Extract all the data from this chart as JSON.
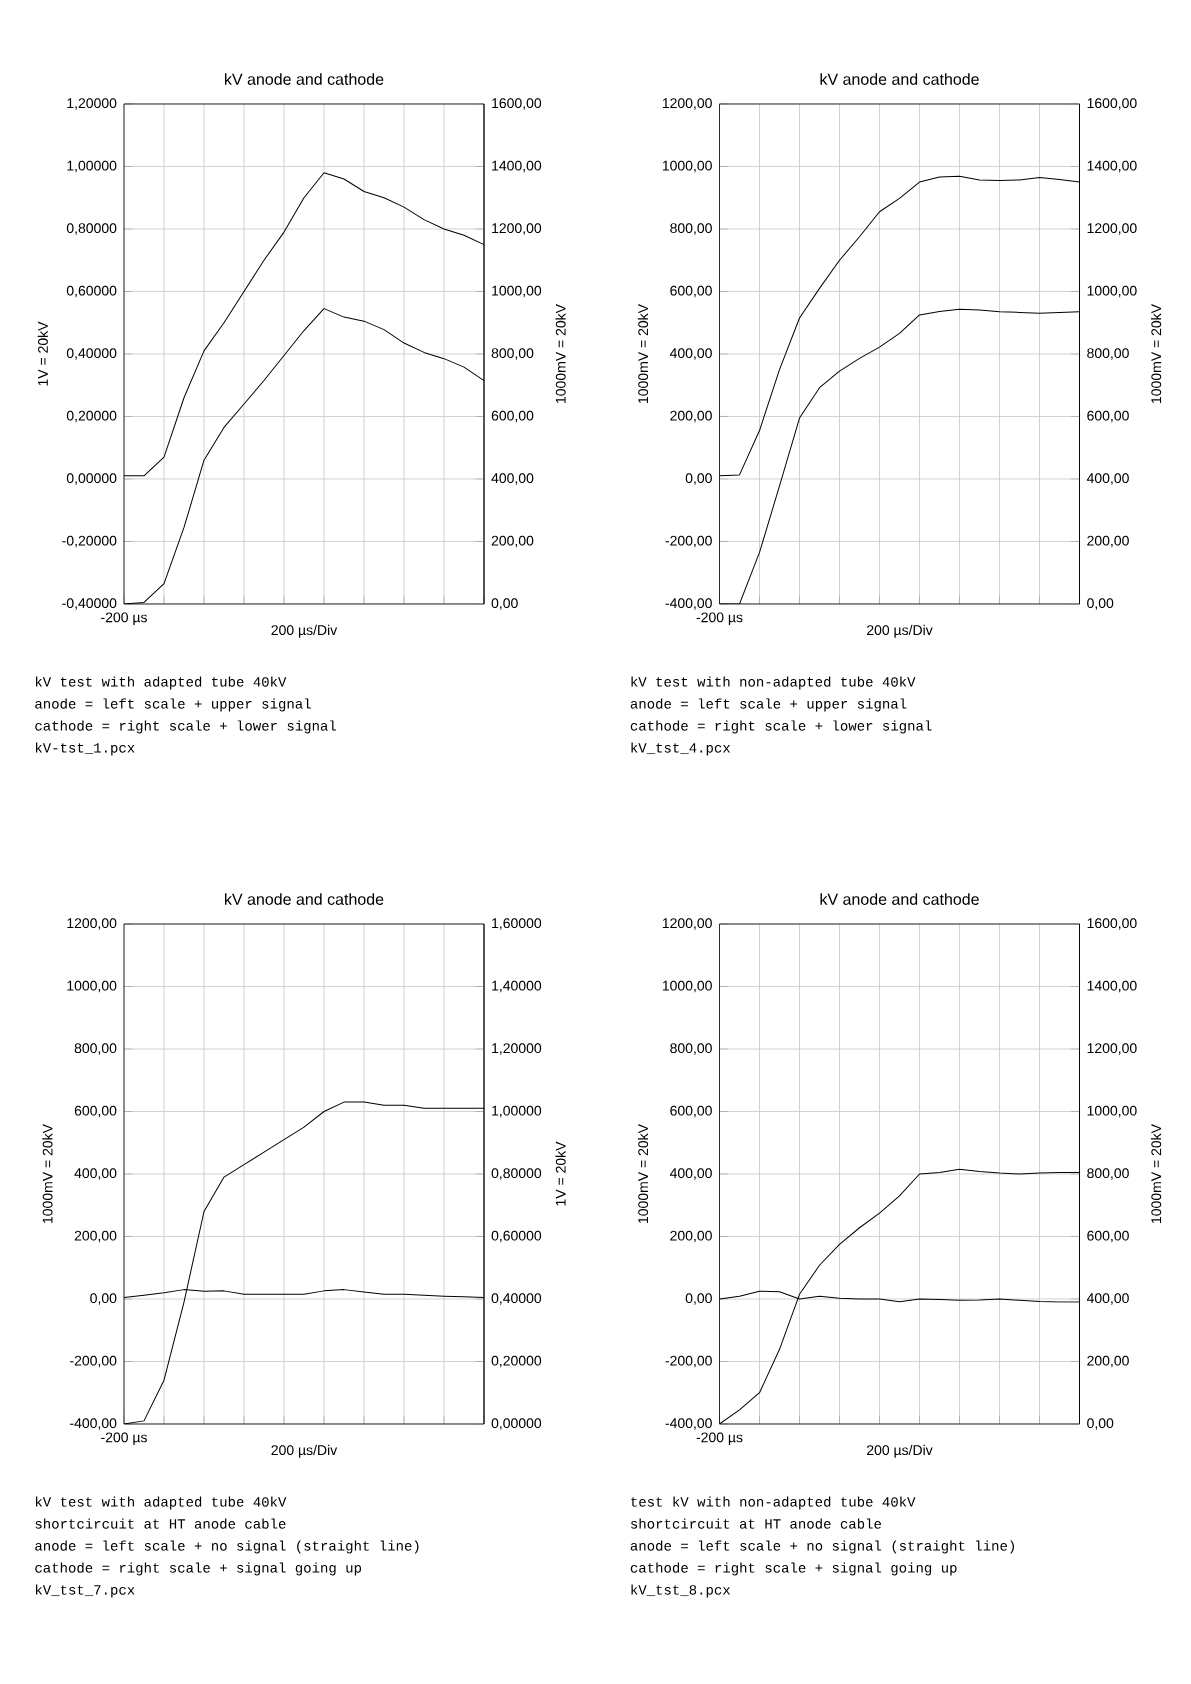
{
  "chart_data": [
    {
      "type": "line",
      "title": "kV anode and cathode",
      "xlabel": "200 µs/Div",
      "ylabel": "1V = 20kV",
      "y2label": "1000mV = 20kV",
      "grid": true,
      "categories": [
        null,
        null,
        null,
        null,
        null,
        null,
        null,
        null,
        null,
        null,
        null,
        null,
        null,
        null,
        null,
        null,
        null,
        null,
        null
      ],
      "ylim": [
        -0.4,
        1.2
      ],
      "yticks": [
        {
          "value": -0.4,
          "label": "-0,40000"
        },
        {
          "value": -0.2,
          "label": "-0,20000"
        },
        {
          "value": 0,
          "label": "0,00000"
        },
        {
          "value": 0.2,
          "label": "0,20000"
        },
        {
          "value": 0.4,
          "label": "0,40000"
        },
        {
          "value": 0.6,
          "label": "0,60000"
        },
        {
          "value": 0.8,
          "label": "0,80000"
        },
        {
          "value": 1.0,
          "label": "1,00000"
        },
        {
          "value": 1.2,
          "label": "1,20000"
        }
      ],
      "y2lim": [
        0,
        1600
      ],
      "y2ticks": [
        {
          "value": 0,
          "label": "0,00"
        },
        {
          "value": 200,
          "label": "200,00"
        },
        {
          "value": 400,
          "label": "400,00"
        },
        {
          "value": 600,
          "label": "600,00"
        },
        {
          "value": 800,
          "label": "800,00"
        },
        {
          "value": 1000,
          "label": "1000,00"
        },
        {
          "value": 1200,
          "label": "1200,00"
        },
        {
          "value": 1400,
          "label": "1400,00"
        },
        {
          "value": 1600,
          "label": "1600,00"
        }
      ],
      "series": [
        {
          "color": "#000000",
          "values": [
            0.01,
            0.01,
            0.07,
            0.26,
            0.41,
            0.5,
            0.6,
            0.7,
            0.79,
            0.9,
            0.98,
            0.96,
            0.92,
            0.9,
            0.87,
            0.83,
            0.8,
            0.78,
            0.75
          ]
        },
        {
          "color": "#000000",
          "axis": "y2",
          "values": [
            0,
            5,
            65,
            245,
            460,
            565,
            640,
            715,
            795,
            875,
            945,
            918,
            905,
            878,
            835,
            805,
            785,
            758,
            715
          ]
        }
      ],
      "annotations": [
        "-200 µs",
        "kV test with adapted tube 40kV",
        "anode = left scale + upper signal",
        "cathode = right scale + lower signal",
        "kV-tst_1.pcx"
      ]
    },
    {
      "type": "line",
      "title": "kV anode and cathode",
      "xlabel": "200 µs/Div",
      "ylabel": "1000mV = 20kV",
      "y2label": "1000mV = 20kV",
      "grid": true,
      "categories": [
        null,
        null,
        null,
        null,
        null,
        null,
        null,
        null,
        null,
        null,
        null,
        null,
        null,
        null,
        null,
        null,
        null,
        null,
        null
      ],
      "ylim": [
        -400,
        1200
      ],
      "yticks": [
        {
          "value": -400,
          "label": "-400,00"
        },
        {
          "value": -200,
          "label": "-200,00"
        },
        {
          "value": 0,
          "label": "0,00"
        },
        {
          "value": 200,
          "label": "200,00"
        },
        {
          "value": 400,
          "label": "400,00"
        },
        {
          "value": 600,
          "label": "600,00"
        },
        {
          "value": 800,
          "label": "800,00"
        },
        {
          "value": 1000,
          "label": "1000,00"
        },
        {
          "value": 1200,
          "label": "1200,00"
        }
      ],
      "y2lim": [
        0,
        1600
      ],
      "y2ticks": [
        {
          "value": 0,
          "label": "0,00"
        },
        {
          "value": 200,
          "label": "200,00"
        },
        {
          "value": 400,
          "label": "400,00"
        },
        {
          "value": 600,
          "label": "600,00"
        },
        {
          "value": 800,
          "label": "800,00"
        },
        {
          "value": 1000,
          "label": "1000,00"
        },
        {
          "value": 1200,
          "label": "1200,00"
        },
        {
          "value": 1400,
          "label": "1400,00"
        },
        {
          "value": 1600,
          "label": "1600,00"
        }
      ],
      "series": [
        {
          "color": "#000000",
          "values": [
            10,
            13,
            155,
            350,
            515,
            610,
            700,
            775,
            855,
            898,
            950,
            966,
            969,
            957,
            955,
            957,
            965,
            958,
            950
          ]
        },
        {
          "color": "#000000",
          "axis": "y2",
          "values": [
            0,
            0,
            165,
            378,
            595,
            692,
            745,
            786,
            822,
            866,
            925,
            936,
            943,
            941,
            935,
            933,
            930,
            933,
            935
          ]
        }
      ],
      "annotations": [
        "-200 µs",
        "kV test with non-adapted tube 40kV",
        "anode = left scale + upper signal",
        "cathode = right scale + lower signal",
        "kV_tst_4.pcx"
      ]
    },
    {
      "type": "line",
      "title": "kV anode and cathode",
      "xlabel": "200 µs/Div",
      "ylabel": "1000mV = 20kV",
      "y2label": "1V = 20kV",
      "grid": true,
      "categories": [
        null,
        null,
        null,
        null,
        null,
        null,
        null,
        null,
        null,
        null,
        null,
        null,
        null,
        null,
        null,
        null,
        null,
        null,
        null
      ],
      "ylim": [
        -400,
        1200
      ],
      "yticks": [
        {
          "value": -400,
          "label": "-400,00"
        },
        {
          "value": -200,
          "label": "-200,00"
        },
        {
          "value": 0,
          "label": "0,00"
        },
        {
          "value": 200,
          "label": "200,00"
        },
        {
          "value": 400,
          "label": "400,00"
        },
        {
          "value": 600,
          "label": "600,00"
        },
        {
          "value": 800,
          "label": "800,00"
        },
        {
          "value": 1000,
          "label": "1000,00"
        },
        {
          "value": 1200,
          "label": "1200,00"
        }
      ],
      "y2lim": [
        0,
        1.6
      ],
      "y2ticks": [
        {
          "value": 0,
          "label": "0,00000"
        },
        {
          "value": 0.2,
          "label": "0,20000"
        },
        {
          "value": 0.4,
          "label": "0,40000"
        },
        {
          "value": 0.6,
          "label": "0,60000"
        },
        {
          "value": 0.8,
          "label": "0,80000"
        },
        {
          "value": 1.0,
          "label": "1,00000"
        },
        {
          "value": 1.2,
          "label": "1,20000"
        },
        {
          "value": 1.4,
          "label": "1,40000"
        },
        {
          "value": 1.6,
          "label": "1,60000"
        }
      ],
      "series": [
        {
          "color": "#000000",
          "values": [
            5,
            12,
            20,
            30,
            25,
            26,
            15,
            15,
            15,
            15,
            26,
            30,
            22,
            15,
            15,
            12,
            9,
            7,
            5
          ]
        },
        {
          "color": "#000000",
          "axis": "y2",
          "values": [
            0.0,
            0.01,
            0.14,
            0.39,
            0.68,
            0.79,
            0.83,
            0.87,
            0.91,
            0.95,
            1.0,
            1.03,
            1.03,
            1.02,
            1.02,
            1.01,
            1.01,
            1.01,
            1.01
          ]
        }
      ],
      "annotations": [
        "-200 µs",
        "kV test with adapted tube 40kV",
        "shortcircuit at HT anode cable",
        "anode = left scale + no signal (straight line)",
        "cathode = right scale + signal going up",
        "kV_tst_7.pcx"
      ]
    },
    {
      "type": "line",
      "title": "kV anode and cathode",
      "xlabel": "200 µs/Div",
      "ylabel": "1000mV = 20kV",
      "y2label": "1000mV = 20kV",
      "grid": true,
      "categories": [
        null,
        null,
        null,
        null,
        null,
        null,
        null,
        null,
        null,
        null,
        null,
        null,
        null,
        null,
        null,
        null,
        null,
        null,
        null
      ],
      "ylim": [
        -400,
        1200
      ],
      "yticks": [
        {
          "value": -400,
          "label": "-400,00"
        },
        {
          "value": -200,
          "label": "-200,00"
        },
        {
          "value": 0,
          "label": "0,00"
        },
        {
          "value": 200,
          "label": "200,00"
        },
        {
          "value": 400,
          "label": "400,00"
        },
        {
          "value": 600,
          "label": "600,00"
        },
        {
          "value": 800,
          "label": "800,00"
        },
        {
          "value": 1000,
          "label": "1000,00"
        },
        {
          "value": 1200,
          "label": "1200,00"
        }
      ],
      "y2lim": [
        0,
        1600
      ],
      "y2ticks": [
        {
          "value": 0,
          "label": "0,00"
        },
        {
          "value": 200,
          "label": "200,00"
        },
        {
          "value": 400,
          "label": "400,00"
        },
        {
          "value": 600,
          "label": "600,00"
        },
        {
          "value": 800,
          "label": "800,00"
        },
        {
          "value": 1000,
          "label": "1000,00"
        },
        {
          "value": 1200,
          "label": "1200,00"
        },
        {
          "value": 1400,
          "label": "1400,00"
        },
        {
          "value": 1600,
          "label": "1600,00"
        }
      ],
      "series": [
        {
          "color": "#000000",
          "values": [
            0,
            9,
            25,
            23,
            0,
            9,
            2,
            0,
            0,
            -9,
            0,
            -2,
            -4,
            -3,
            0,
            -4,
            -8,
            -10,
            -10
          ]
        },
        {
          "color": "#000000",
          "axis": "y2",
          "values": [
            0,
            45,
            100,
            239,
            415,
            508,
            575,
            628,
            675,
            730,
            800,
            805,
            815,
            808,
            803,
            800,
            803,
            805,
            805
          ]
        }
      ],
      "annotations": [
        "-200 µs",
        "test kV with non-adapted tube 40kV",
        "shortcircuit at HT anode cable",
        "anode = left scale + no signal (straight line)",
        "cathode = right scale + signal going up",
        "kV_tst_8.pcx"
      ]
    }
  ]
}
